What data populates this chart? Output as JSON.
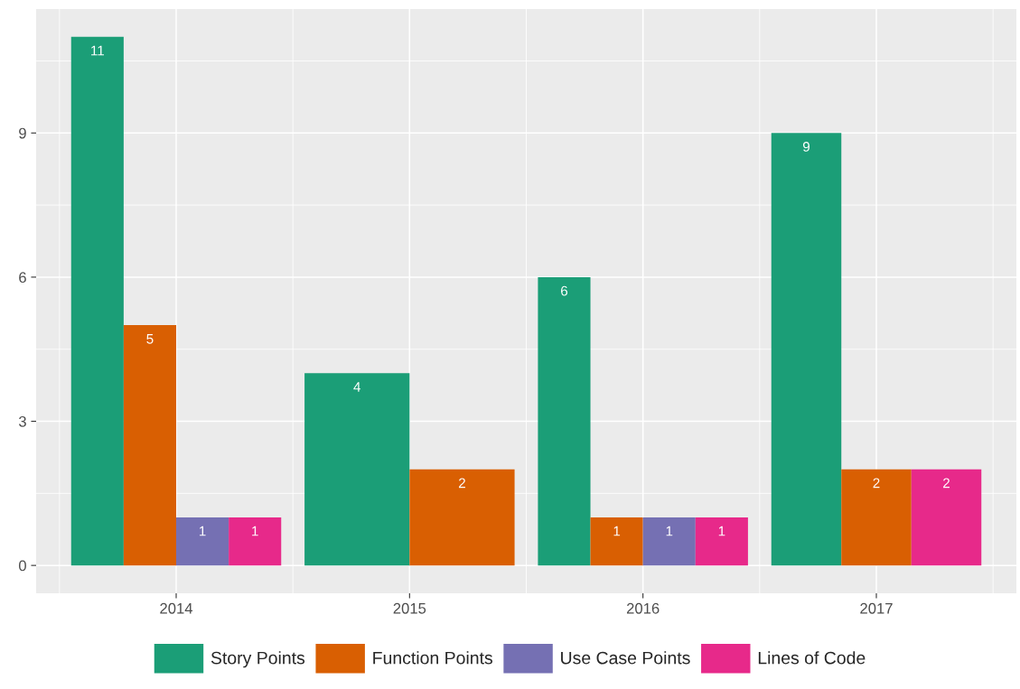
{
  "chart_data": {
    "type": "bar",
    "categories": [
      "2014",
      "2015",
      "2016",
      "2017"
    ],
    "series": [
      {
        "name": "Story Points",
        "color": "#1b9e77",
        "values": [
          11,
          4,
          6,
          9
        ]
      },
      {
        "name": "Function Points",
        "color": "#d95f02",
        "values": [
          5,
          2,
          1,
          2
        ]
      },
      {
        "name": "Use Case Points",
        "color": "#7570b3",
        "values": [
          1,
          null,
          1,
          null
        ]
      },
      {
        "name": "Lines of Code",
        "color": "#e7298a",
        "values": [
          1,
          null,
          1,
          2
        ]
      }
    ],
    "ylim": [
      -0.58,
      11.58
    ],
    "yticks": [
      0,
      3,
      6,
      9
    ],
    "grid": true,
    "legend": "bottom",
    "data_labels": true
  }
}
